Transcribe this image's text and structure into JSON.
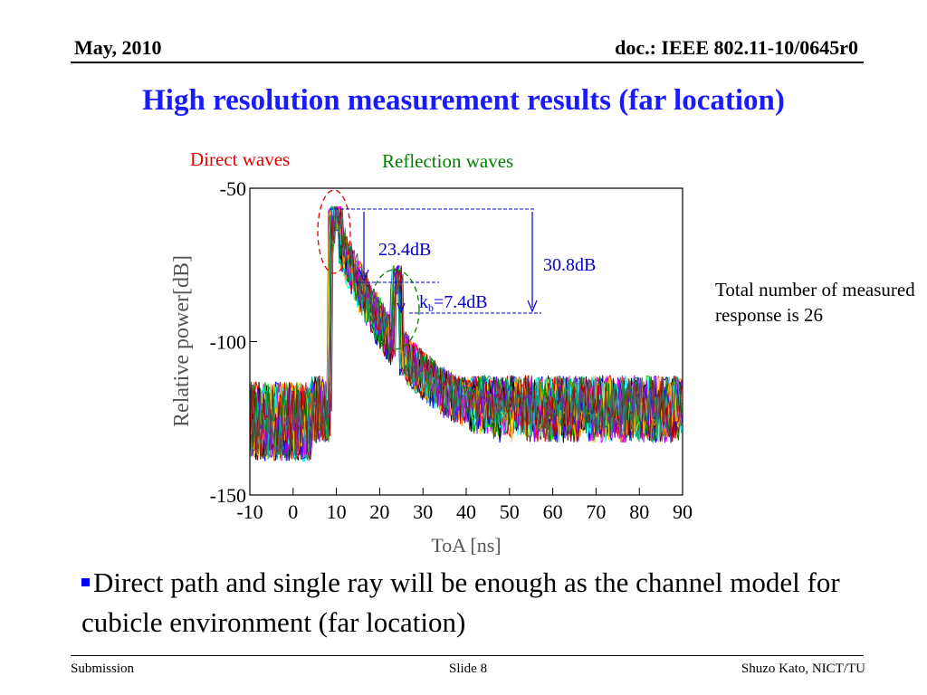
{
  "header": {
    "date": "May, 2010",
    "doc_id": "doc.: IEEE 802.11-10/0645r0"
  },
  "title": "High resolution measurement results (far location)",
  "annotations": {
    "direct_waves": "Direct waves",
    "reflection_waves": "Reflection waves",
    "peak_diff_23": "23.4dB",
    "peak_diff_30": "30.8dB",
    "kb_prefix": "k",
    "kb_sub": "b",
    "kb_suffix": "=7.4dB"
  },
  "side_note": "Total number of measured response is 26",
  "bullet": "Direct path and single ray will be enough as the channel model for cubicle environment (far location)",
  "footer": {
    "left": "Submission",
    "center": "Slide 8",
    "right": "Shuzo Kato, NICT/TU"
  },
  "chart_data": {
    "type": "line",
    "xlabel": "ToA [ns]",
    "ylabel": "Relative power[dB]",
    "xlim": [
      -10,
      90
    ],
    "ylim": [
      -150,
      -50
    ],
    "x_ticks": [
      -10,
      0,
      10,
      20,
      30,
      40,
      50,
      60,
      70,
      80,
      90
    ],
    "y_ticks": [
      -50,
      -100,
      -150
    ],
    "series_count": 26,
    "series_colors": [
      "#ff0000",
      "#00cc00",
      "#0000ff",
      "#000000",
      "#ff00ff",
      "#00ffff",
      "#ffcc00",
      "#ff8800",
      "#008000",
      "#8800ff",
      "#00aa88",
      "#aa0000",
      "#555555"
    ],
    "direct_peak": {
      "x": 10,
      "y": -60
    },
    "reflection_peak": {
      "x": 24,
      "y": -83
    },
    "noise_floor": -122,
    "grid": false,
    "legend": "none"
  }
}
